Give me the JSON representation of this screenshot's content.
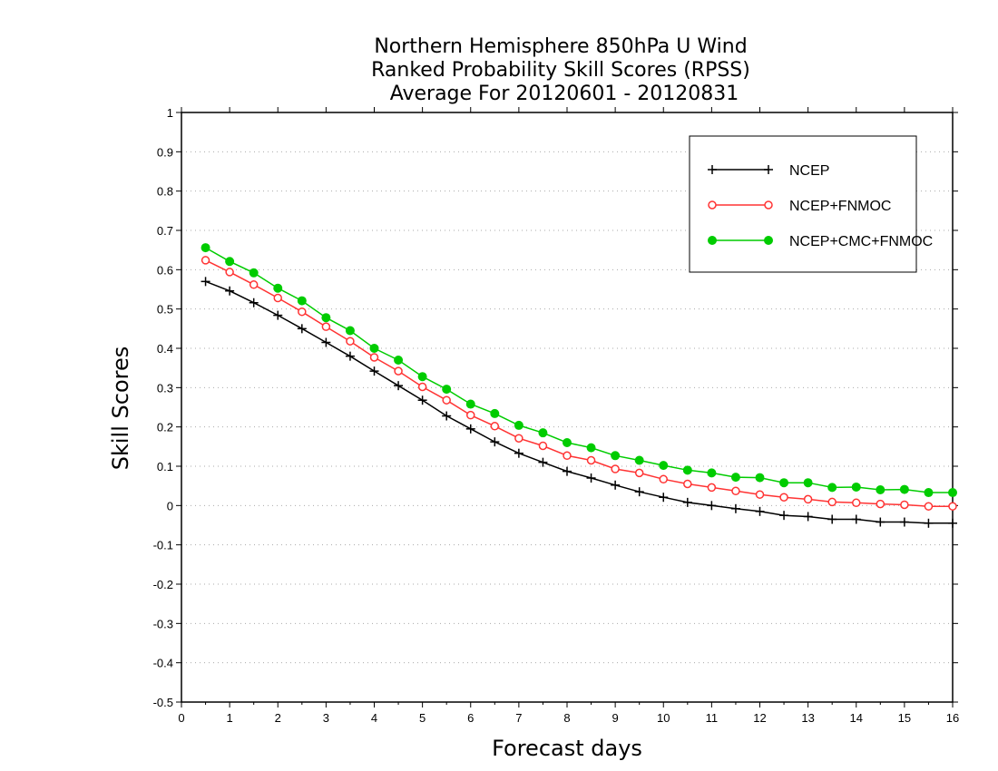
{
  "chart_data": {
    "type": "line",
    "title": [
      "Northern Hemisphere 850hPa U Wind",
      "Ranked Probability Skill Scores (RPSS)",
      "Average For 20120601 - 20120831"
    ],
    "xlabel": "Forecast days",
    "ylabel": "Skill Scores",
    "xlim": [
      0,
      16
    ],
    "ylim": [
      -0.5,
      1
    ],
    "x_ticks": [
      0,
      1,
      2,
      3,
      4,
      5,
      6,
      7,
      8,
      9,
      10,
      11,
      12,
      13,
      14,
      15,
      16
    ],
    "y_ticks": [
      -0.5,
      -0.4,
      -0.3,
      -0.2,
      -0.1,
      0,
      0.1,
      0.2,
      0.3,
      0.4,
      0.5,
      0.6,
      0.7,
      0.8,
      0.9,
      1
    ],
    "y_tick_labels": [
      "-0.5",
      "-0.4",
      "-0.3",
      "-0.2",
      "-0.1",
      "0",
      "0.1",
      "0.2",
      "0.3",
      "0.4",
      "0.5",
      "0.6",
      "0.7",
      "0.8",
      "0.9",
      "1"
    ],
    "grid": "horizontal dotted",
    "legend_position": "top-right",
    "x": [
      0.5,
      1,
      1.5,
      2,
      2.5,
      3,
      3.5,
      4,
      4.5,
      5,
      5.5,
      6,
      6.5,
      7,
      7.5,
      8,
      8.5,
      9,
      9.5,
      10,
      10.5,
      11,
      11.5,
      12,
      12.5,
      13,
      13.5,
      14,
      14.5,
      15,
      15.5,
      16
    ],
    "series": [
      {
        "name": "NCEP",
        "color": "#000000",
        "marker": "plus",
        "values": [
          0.57,
          0.546,
          0.516,
          0.484,
          0.45,
          0.415,
          0.38,
          0.342,
          0.305,
          0.268,
          0.228,
          0.195,
          0.162,
          0.133,
          0.11,
          0.087,
          0.07,
          0.052,
          0.035,
          0.021,
          0.008,
          0.0,
          -0.008,
          -0.015,
          -0.025,
          -0.028,
          -0.035,
          -0.035,
          -0.042,
          -0.042,
          -0.045,
          -0.045
        ]
      },
      {
        "name": "NCEP+FNMOC",
        "color": "#ff3333",
        "marker": "open-circle",
        "values": [
          0.624,
          0.594,
          0.562,
          0.528,
          0.493,
          0.455,
          0.418,
          0.377,
          0.342,
          0.302,
          0.268,
          0.23,
          0.202,
          0.171,
          0.152,
          0.127,
          0.115,
          0.093,
          0.083,
          0.067,
          0.055,
          0.046,
          0.037,
          0.028,
          0.021,
          0.016,
          0.009,
          0.007,
          0.004,
          0.002,
          -0.002,
          -0.002
        ]
      },
      {
        "name": "NCEP+CMC+FNMOC",
        "color": "#00cc00",
        "marker": "filled-circle",
        "values": [
          0.656,
          0.621,
          0.592,
          0.553,
          0.521,
          0.478,
          0.445,
          0.4,
          0.37,
          0.328,
          0.296,
          0.258,
          0.234,
          0.204,
          0.185,
          0.16,
          0.147,
          0.127,
          0.115,
          0.102,
          0.09,
          0.083,
          0.072,
          0.071,
          0.058,
          0.058,
          0.046,
          0.047,
          0.04,
          0.041,
          0.033,
          0.033
        ]
      }
    ]
  }
}
